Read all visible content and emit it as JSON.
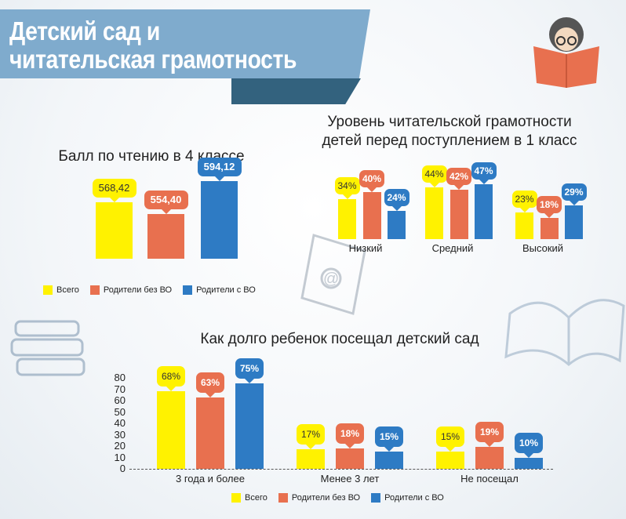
{
  "header": {
    "title_line1": "Детский сад и",
    "title_line2": "читательская грамотность"
  },
  "colors": {
    "all": "#fff200",
    "no_he": "#e8704f",
    "he": "#2e7bc4"
  },
  "chart_data": [
    {
      "type": "bar",
      "title": "Балл по чтению в 4 классе",
      "categories": [
        ""
      ],
      "series": [
        {
          "name": "Всего",
          "values": [
            568.42
          ],
          "labels": [
            "568,42"
          ]
        },
        {
          "name": "Родители без ВО",
          "values": [
            554.4
          ],
          "labels": [
            "554,40"
          ]
        },
        {
          "name": "Родители с ВО",
          "values": [
            594.12
          ],
          "labels": [
            "594,12"
          ]
        }
      ],
      "legend": "bottom"
    },
    {
      "type": "bar",
      "title_line1": "Уровень читательской грамотности",
      "title_line2": "детей перед поступлением в 1 класс",
      "categories": [
        "Низкий",
        "Средний",
        "Высокий"
      ],
      "series": [
        {
          "name": "Всего",
          "values": [
            34,
            44,
            23
          ]
        },
        {
          "name": "Родители без ВО",
          "values": [
            40,
            42,
            18
          ]
        },
        {
          "name": "Родители с ВО",
          "values": [
            24,
            47,
            29
          ]
        }
      ]
    },
    {
      "type": "bar",
      "title": "Как долго ребенок посещал детский сад",
      "categories": [
        "3 года и более",
        "Менее 3 лет",
        "Не посещал"
      ],
      "series": [
        {
          "name": "Всего",
          "values": [
            68,
            17,
            15
          ]
        },
        {
          "name": "Родители без ВО",
          "values": [
            63,
            18,
            19
          ]
        },
        {
          "name": "Родители с ВО",
          "values": [
            75,
            15,
            10
          ]
        }
      ],
      "yticks": [
        "0",
        "10",
        "20",
        "30",
        "40",
        "50",
        "60",
        "70",
        "80"
      ],
      "ylim": [
        0,
        80
      ],
      "legend": "bottom"
    }
  ]
}
